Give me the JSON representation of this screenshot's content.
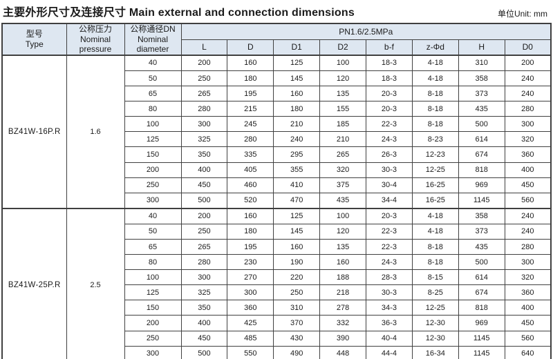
{
  "title": "主要外形尺寸及连接尺寸 Main external and connection dimensions",
  "unit": "单位Unit: mm",
  "colors": {
    "header_bg": "#dee7f1",
    "border": "#3f3f3f",
    "text": "#1a1a1a",
    "page_bg": "#ffffff"
  },
  "table": {
    "headers": {
      "type_zh": "型号",
      "type_en": "Type",
      "pressure_zh": "公称压力",
      "pressure_en": "Nominal pressure",
      "dn_zh": "公称通径DN",
      "dn_en": "Nominal diameter",
      "span_header": "PN1.6/2.5MPa",
      "sub_headers": [
        "L",
        "D",
        "D1",
        "D2",
        "b-f",
        "z-Φd",
        "H",
        "D0"
      ]
    },
    "sections": [
      {
        "type": "BZ41W-16P.R",
        "pressure": "1.6",
        "rows": [
          [
            "40",
            "200",
            "160",
            "125",
            "100",
            "18-3",
            "4-18",
            "310",
            "200"
          ],
          [
            "50",
            "250",
            "180",
            "145",
            "120",
            "18-3",
            "4-18",
            "358",
            "240"
          ],
          [
            "65",
            "265",
            "195",
            "160",
            "135",
            "20-3",
            "8-18",
            "373",
            "240"
          ],
          [
            "80",
            "280",
            "215",
            "180",
            "155",
            "20-3",
            "8-18",
            "435",
            "280"
          ],
          [
            "100",
            "300",
            "245",
            "210",
            "185",
            "22-3",
            "8-18",
            "500",
            "300"
          ],
          [
            "125",
            "325",
            "280",
            "240",
            "210",
            "24-3",
            "8-23",
            "614",
            "320"
          ],
          [
            "150",
            "350",
            "335",
            "295",
            "265",
            "26-3",
            "12-23",
            "674",
            "360"
          ],
          [
            "200",
            "400",
            "405",
            "355",
            "320",
            "30-3",
            "12-25",
            "818",
            "400"
          ],
          [
            "250",
            "450",
            "460",
            "410",
            "375",
            "30-4",
            "16-25",
            "969",
            "450"
          ],
          [
            "300",
            "500",
            "520",
            "470",
            "435",
            "34-4",
            "16-25",
            "1145",
            "560"
          ]
        ]
      },
      {
        "type": "BZ41W-25P.R",
        "pressure": "2.5",
        "rows": [
          [
            "40",
            "200",
            "160",
            "125",
            "100",
            "20-3",
            "4-18",
            "358",
            "240"
          ],
          [
            "50",
            "250",
            "180",
            "145",
            "120",
            "22-3",
            "4-18",
            "373",
            "240"
          ],
          [
            "65",
            "265",
            "195",
            "160",
            "135",
            "22-3",
            "8-18",
            "435",
            "280"
          ],
          [
            "80",
            "280",
            "230",
            "190",
            "160",
            "24-3",
            "8-18",
            "500",
            "300"
          ],
          [
            "100",
            "300",
            "270",
            "220",
            "188",
            "28-3",
            "8-15",
            "614",
            "320"
          ],
          [
            "125",
            "325",
            "300",
            "250",
            "218",
            "30-3",
            "8-25",
            "674",
            "360"
          ],
          [
            "150",
            "350",
            "360",
            "310",
            "278",
            "34-3",
            "12-25",
            "818",
            "400"
          ],
          [
            "200",
            "400",
            "425",
            "370",
            "332",
            "36-3",
            "12-30",
            "969",
            "450"
          ],
          [
            "250",
            "450",
            "485",
            "430",
            "390",
            "40-4",
            "12-30",
            "1145",
            "560"
          ],
          [
            "300",
            "500",
            "550",
            "490",
            "448",
            "44-4",
            "16-34",
            "1145",
            "640"
          ]
        ]
      }
    ]
  }
}
